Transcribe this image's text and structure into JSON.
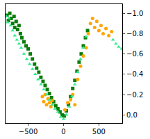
{
  "chart_data": {
    "type": "scatter",
    "xlim": [
      -820,
      830
    ],
    "xticks": [
      {
        "value": -500,
        "label": "−500"
      },
      0,
      500
    ],
    "ylim": [
      0.08,
      -1.09
    ],
    "yticks": [
      {
        "value": -1.0,
        "label": "−1.0"
      },
      {
        "value": -0.8,
        "label": "−0.8"
      },
      {
        "value": -0.6,
        "label": "−0.6"
      },
      {
        "value": -0.4,
        "label": "−0.4"
      },
      {
        "value": -0.2,
        "label": "−0.2"
      },
      {
        "value": 0.0,
        "label": "0.0"
      }
    ],
    "grid": false,
    "series": [
      {
        "color": "#0a7d0a",
        "marker": "square",
        "x": [
          -800,
          -780,
          -760,
          -740,
          -720,
          -700,
          -690,
          -670,
          -650,
          -630,
          -610,
          -590,
          -560,
          -530,
          -500,
          -470,
          -440,
          -410,
          -380,
          -350,
          -320,
          -290,
          -260,
          -230,
          -200,
          -170,
          -140,
          -110,
          -80,
          -50,
          -20,
          10,
          40,
          70,
          100,
          130,
          160,
          190,
          220,
          250,
          280,
          310,
          340
        ],
        "values": [
          -0.98,
          -0.93,
          -1.0,
          -0.95,
          -0.9,
          -0.97,
          -0.86,
          -0.92,
          -0.84,
          -0.88,
          -0.8,
          -0.76,
          -0.72,
          -0.68,
          -0.65,
          -0.6,
          -0.55,
          -0.5,
          -0.46,
          -0.42,
          -0.37,
          -0.33,
          -0.29,
          -0.25,
          -0.21,
          -0.17,
          -0.13,
          -0.09,
          -0.06,
          -0.03,
          0.0,
          0.01,
          -0.04,
          -0.1,
          -0.18,
          -0.26,
          -0.34,
          -0.43,
          -0.52,
          -0.6,
          -0.68,
          -0.76,
          -0.83
        ]
      },
      {
        "color": "#ffa500",
        "marker": "circle",
        "x": [
          -300,
          -280,
          -260,
          -240,
          -220,
          -200,
          -180,
          -160,
          20,
          60,
          100,
          130,
          160,
          200,
          240,
          280,
          320,
          350,
          380,
          410,
          440,
          470,
          500,
          530,
          560,
          600,
          640,
          680
        ],
        "values": [
          -0.18,
          -0.13,
          -0.2,
          -0.1,
          -0.16,
          -0.12,
          -0.08,
          -0.14,
          -0.05,
          -0.12,
          -0.15,
          -0.2,
          -0.1,
          -0.35,
          -0.48,
          -0.58,
          -0.66,
          -0.8,
          -0.9,
          -0.95,
          -0.86,
          -0.92,
          -0.83,
          -0.88,
          -0.8,
          -0.85,
          -0.78,
          -0.82
        ]
      },
      {
        "color": "#33ea8f",
        "marker": "triangle-up",
        "x": [
          -810,
          -790,
          -770,
          -750,
          -720,
          -690,
          -660,
          -630,
          -600,
          -560,
          -520,
          -480,
          -440,
          -400,
          -360,
          -320,
          -280,
          -240,
          -200,
          -160,
          -120,
          -80,
          -40,
          0,
          40,
          80,
          120,
          160,
          200,
          240,
          280,
          320,
          700,
          740,
          780,
          820
        ],
        "values": [
          -0.97,
          -0.91,
          -0.95,
          -0.88,
          -0.83,
          -0.78,
          -0.74,
          -0.7,
          -0.66,
          -0.6,
          -0.55,
          -0.5,
          -0.45,
          -0.4,
          -0.35,
          -0.3,
          -0.25,
          -0.2,
          -0.15,
          -0.1,
          -0.06,
          -0.03,
          0.02,
          0.04,
          0.0,
          -0.08,
          -0.18,
          -0.3,
          -0.42,
          -0.55,
          -0.66,
          -0.77,
          -0.74,
          -0.7,
          -0.67,
          -0.65
        ]
      }
    ]
  }
}
